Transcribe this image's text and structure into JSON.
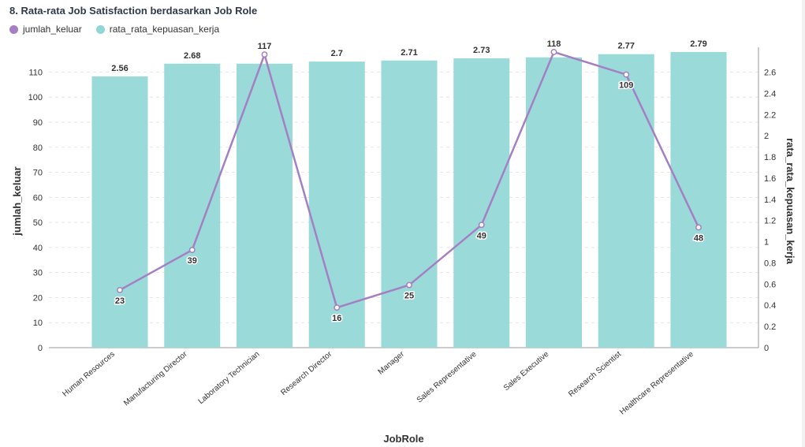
{
  "title": "8. Rata-rata Job Satisfaction berdasarkan Job Role",
  "legend": [
    {
      "label": "jumlah_keluar",
      "color": "#a57fc4"
    },
    {
      "label": "rata_rata_kepuasan_kerja",
      "color": "#8fd6d4"
    }
  ],
  "chart_data": {
    "type": "bar",
    "title": "8. Rata-rata Job Satisfaction berdasarkan Job Role",
    "xlabel": "JobRole",
    "ylabel": "jumlah_keluar",
    "y2label": "rata_rata_kepuasan_kerja",
    "categories": [
      "Human Resources",
      "Manufacturing Director",
      "Laboratory Technician",
      "Research Director",
      "Manager",
      "Sales Representative",
      "Sales Executive",
      "Research Scientist",
      "Healthcare Representative"
    ],
    "series": [
      {
        "name": "rata_rata_kepuasan_kerja",
        "type": "bar",
        "axis": "right",
        "color": "#9adad9",
        "values": [
          2.56,
          2.68,
          2.68,
          2.7,
          2.71,
          2.73,
          2.74,
          2.77,
          2.79
        ],
        "labels": [
          "2.56",
          "2.68",
          "",
          "2.7",
          "2.71",
          "2.73",
          "",
          "2.77",
          "2.79"
        ]
      },
      {
        "name": "jumlah_keluar",
        "type": "line",
        "axis": "left",
        "color": "#a57fc4",
        "values": [
          23,
          39,
          117,
          16,
          25,
          49,
          118,
          109,
          48
        ]
      }
    ],
    "ylim": [
      0,
      118
    ],
    "y_ticks": [
      0,
      10,
      20,
      30,
      40,
      50,
      60,
      70,
      80,
      90,
      100,
      110
    ],
    "y2lim": [
      0,
      2.79
    ],
    "y2_ticks": [
      "0",
      "0.2",
      "0.4",
      "0.6",
      "0.8",
      "1",
      "1.2",
      "1.4",
      "1.6",
      "1.8",
      "2",
      "2.2",
      "2.4",
      "2.6"
    ],
    "grid": true,
    "legend_position": "top-left"
  }
}
